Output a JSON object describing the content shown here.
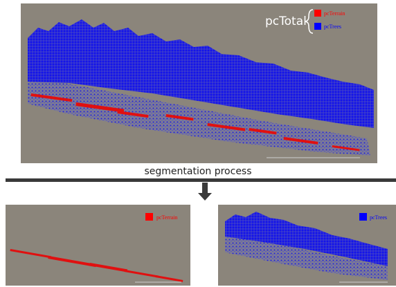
{
  "top_panel": {
    "total_label": "pcTotal",
    "legend": [
      {
        "label": "pcTerrain"
      },
      {
        "label": "pcTrees"
      }
    ]
  },
  "process_label": "segmentation process",
  "bottom_panels": [
    {
      "legend_label": "pcTerrain"
    },
    {
      "legend_label": "pcTrees"
    }
  ]
}
